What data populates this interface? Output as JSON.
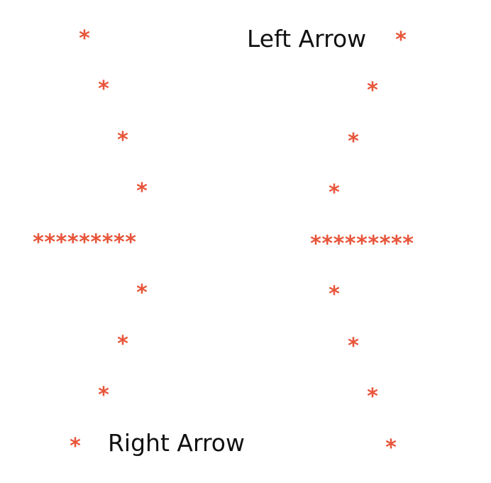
{
  "labels": {
    "left_arrow": "Left Arrow",
    "right_arrow": "Right Arrow"
  },
  "glyph": "*",
  "arrows": {
    "right": {
      "rows": [
        "*",
        "*",
        "*",
        "*",
        "*********",
        "*",
        "*",
        "*",
        "*"
      ],
      "shaft_length": 9,
      "direction": "right"
    },
    "left": {
      "rows": [
        "*",
        "*",
        "*",
        "*",
        "*********",
        "*",
        "*",
        "*",
        "*"
      ],
      "shaft_length": 9,
      "direction": "left"
    }
  },
  "colors": {
    "star": "#e8553a",
    "text": "#111111",
    "background": "#ffffff"
  }
}
